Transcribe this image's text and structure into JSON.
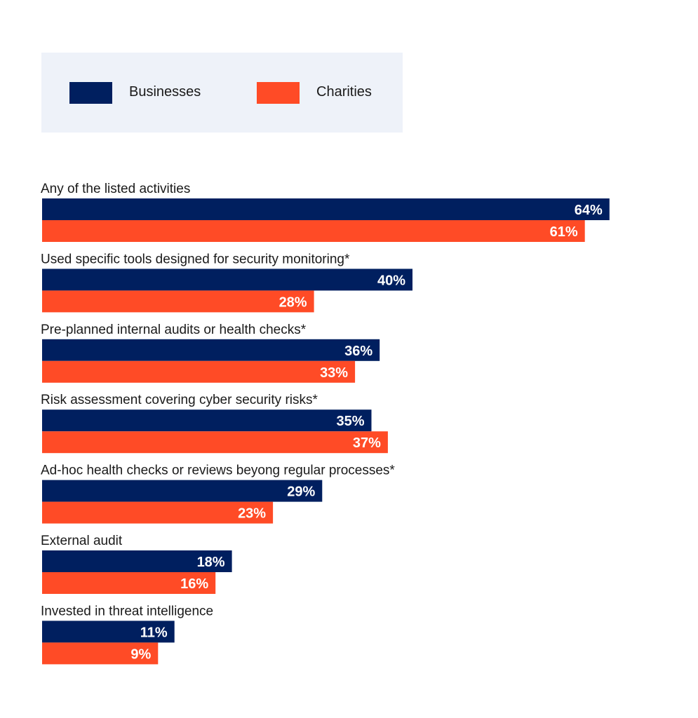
{
  "legend": {
    "businesses": "Businesses",
    "charities": "Charities"
  },
  "colors": {
    "businesses": "#001f5f",
    "charities": "#ff4b26",
    "legend_bg": "#eef2f9"
  },
  "chart_data": {
    "type": "bar",
    "orientation": "horizontal",
    "categories": [
      "Any of the listed activities",
      "Used specific tools designed for security monitoring*",
      "Pre-planned internal audits or health checks*",
      "Risk assessment covering cyber security risks*",
      "Ad-hoc health checks or reviews beyong regular processes*",
      "External audit",
      "Invested in threat intelligence"
    ],
    "series": [
      {
        "name": "Businesses",
        "values": [
          64,
          40,
          36,
          35,
          29,
          18,
          11
        ],
        "labels": [
          "64%",
          "40%",
          "36%",
          "35%",
          "29%",
          "18%",
          "11%"
        ]
      },
      {
        "name": "Charities",
        "values": [
          61,
          28,
          33,
          37,
          23,
          16,
          9
        ],
        "labels": [
          "61%",
          "28%",
          "33%",
          "37%",
          "23%",
          "16%",
          "9%"
        ]
      }
    ],
    "unit": "%",
    "legend_position": "top-left",
    "grid": false
  }
}
